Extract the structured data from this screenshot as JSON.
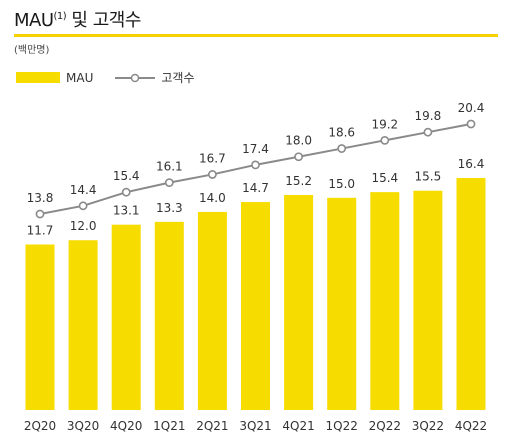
{
  "header": {
    "title_main": "MAU",
    "title_sup": "(1)",
    "title_rest": " 및 고객수",
    "unit": "(백만명)"
  },
  "legend": {
    "bar_label": "MAU",
    "line_label": "고객수"
  },
  "colors": {
    "bar": "#f7dc00",
    "line": "#8a8a8a",
    "accent_rule": "#f5d200"
  },
  "chart_data": {
    "type": "bar",
    "categories": [
      "2Q20",
      "3Q20",
      "4Q20",
      "1Q21",
      "2Q21",
      "3Q21",
      "4Q21",
      "1Q22",
      "2Q22",
      "3Q22",
      "4Q22"
    ],
    "series": [
      {
        "name": "MAU",
        "type": "bar",
        "values": [
          11.7,
          12.0,
          13.1,
          13.3,
          14.0,
          14.7,
          15.2,
          15.0,
          15.4,
          15.5,
          16.4
        ]
      },
      {
        "name": "고객수",
        "type": "line",
        "values": [
          13.8,
          14.4,
          15.4,
          16.1,
          16.7,
          17.4,
          18.0,
          18.6,
          19.2,
          19.8,
          20.4
        ]
      }
    ],
    "data_labels": true,
    "grid": false,
    "legend_position": "top-left"
  }
}
